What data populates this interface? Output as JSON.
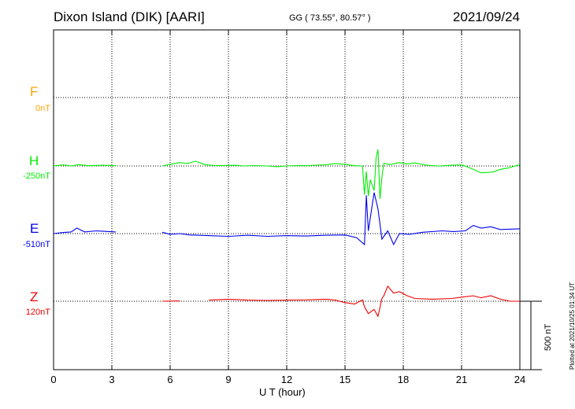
{
  "header": {
    "station": "Dixon Island (DIK)  [AARI]",
    "coords": "GG ( 73.55°,  80.57° )",
    "date": "2021/09/24"
  },
  "channels": [
    {
      "name": "F",
      "baseline": "0nT",
      "color": "#ffa500"
    },
    {
      "name": "H",
      "baseline": "-250nT",
      "color": "#00ee00"
    },
    {
      "name": "E",
      "baseline": "-510nT",
      "color": "#0000ee"
    },
    {
      "name": "Z",
      "baseline": "120nT",
      "color": "#ee0000"
    }
  ],
  "scale_bar": {
    "label": "500 nT",
    "value": 500
  },
  "plotted_stamp": "Plotted at 2021/10/25 01:34 UT",
  "chart_data": {
    "type": "line",
    "xlabel": "U T (hour)",
    "xlim": [
      0,
      24
    ],
    "xticks": [
      0,
      3,
      6,
      9,
      12,
      15,
      18,
      21,
      24
    ],
    "units": "nT",
    "grid": true,
    "note_gap": "No data between about 3.2 and 5.6 UT",
    "series": [
      {
        "name": "F",
        "baseline_nT": 0,
        "points": []
      },
      {
        "name": "H",
        "baseline_nT": -250,
        "points": [
          [
            0,
            0
          ],
          [
            0.5,
            8
          ],
          [
            0.9,
            0
          ],
          [
            1.3,
            10
          ],
          [
            1.8,
            2
          ],
          [
            2.5,
            5
          ],
          [
            3.2,
            2
          ],
          [
            5.6,
            0
          ],
          [
            6.0,
            12
          ],
          [
            6.5,
            25
          ],
          [
            6.9,
            18
          ],
          [
            7.3,
            35
          ],
          [
            7.8,
            10
          ],
          [
            8.3,
            3
          ],
          [
            8.8,
            3
          ],
          [
            9.3,
            5
          ],
          [
            9.8,
            0
          ],
          [
            10.3,
            3
          ],
          [
            11.0,
            0
          ],
          [
            11.5,
            -5
          ],
          [
            12.0,
            0
          ],
          [
            12.5,
            3
          ],
          [
            13.0,
            2
          ],
          [
            13.5,
            6
          ],
          [
            14.0,
            8
          ],
          [
            14.5,
            18
          ],
          [
            15.0,
            12
          ],
          [
            15.5,
            2
          ],
          [
            15.9,
            0
          ],
          [
            16.0,
            -210
          ],
          [
            16.1,
            -40
          ],
          [
            16.2,
            -220
          ],
          [
            16.3,
            -100
          ],
          [
            16.5,
            -180
          ],
          [
            16.6,
            60
          ],
          [
            16.7,
            120
          ],
          [
            16.8,
            -240
          ],
          [
            16.9,
            -80
          ],
          [
            17.0,
            20
          ],
          [
            17.3,
            10
          ],
          [
            17.8,
            25
          ],
          [
            18.2,
            15
          ],
          [
            18.6,
            22
          ],
          [
            19.2,
            5
          ],
          [
            19.8,
            0
          ],
          [
            20.5,
            5
          ],
          [
            21.0,
            8
          ],
          [
            21.2,
            -2
          ],
          [
            21.6,
            -25
          ],
          [
            22.0,
            -50
          ],
          [
            22.6,
            -45
          ],
          [
            23.0,
            -25
          ],
          [
            23.4,
            -15
          ],
          [
            24.0,
            10
          ]
        ]
      },
      {
        "name": "E",
        "baseline_nT": -510,
        "points": [
          [
            0,
            0
          ],
          [
            0.5,
            8
          ],
          [
            0.9,
            12
          ],
          [
            1.2,
            40
          ],
          [
            1.6,
            12
          ],
          [
            2.2,
            20
          ],
          [
            3.2,
            12
          ],
          [
            5.6,
            10
          ],
          [
            6.0,
            -5
          ],
          [
            6.5,
            0
          ],
          [
            7.0,
            -10
          ],
          [
            8.0,
            -15
          ],
          [
            9.0,
            -20
          ],
          [
            10.0,
            -12
          ],
          [
            11.0,
            -20
          ],
          [
            12.0,
            -15
          ],
          [
            13.0,
            -18
          ],
          [
            14.0,
            -12
          ],
          [
            15.0,
            -10
          ],
          [
            15.6,
            -30
          ],
          [
            16.0,
            -80
          ],
          [
            16.1,
            280
          ],
          [
            16.2,
            20
          ],
          [
            16.5,
            300
          ],
          [
            16.7,
            180
          ],
          [
            16.9,
            -40
          ],
          [
            17.2,
            20
          ],
          [
            17.5,
            -80
          ],
          [
            17.8,
            0
          ],
          [
            18.3,
            -5
          ],
          [
            19.0,
            10
          ],
          [
            20.0,
            20
          ],
          [
            20.6,
            15
          ],
          [
            21.2,
            20
          ],
          [
            21.6,
            60
          ],
          [
            22.0,
            40
          ],
          [
            22.5,
            50
          ],
          [
            23.0,
            30
          ],
          [
            24.0,
            35
          ]
        ]
      },
      {
        "name": "Z",
        "baseline_nT": 120,
        "points": [
          [
            0,
            0
          ],
          [
            1.5,
            5
          ],
          [
            3.2,
            0
          ],
          [
            5.6,
            0
          ],
          [
            6.5,
            3
          ],
          [
            8.0,
            8
          ],
          [
            9.0,
            15
          ],
          [
            10.0,
            8
          ],
          [
            11.0,
            5
          ],
          [
            12.0,
            8
          ],
          [
            13.0,
            10
          ],
          [
            14.0,
            15
          ],
          [
            14.5,
            8
          ],
          [
            15.0,
            -10
          ],
          [
            15.5,
            -20
          ],
          [
            15.9,
            10
          ],
          [
            16.0,
            -40
          ],
          [
            16.2,
            -90
          ],
          [
            16.5,
            -60
          ],
          [
            16.7,
            -110
          ],
          [
            16.9,
            20
          ],
          [
            17.0,
            40
          ],
          [
            17.2,
            110
          ],
          [
            17.5,
            60
          ],
          [
            17.8,
            70
          ],
          [
            18.2,
            40
          ],
          [
            18.6,
            20
          ],
          [
            19.5,
            15
          ],
          [
            20.5,
            20
          ],
          [
            21.0,
            30
          ],
          [
            21.6,
            40
          ],
          [
            22.0,
            25
          ],
          [
            22.5,
            40
          ],
          [
            23.0,
            15
          ],
          [
            23.5,
            0
          ],
          [
            24.0,
            0
          ]
        ]
      }
    ]
  }
}
